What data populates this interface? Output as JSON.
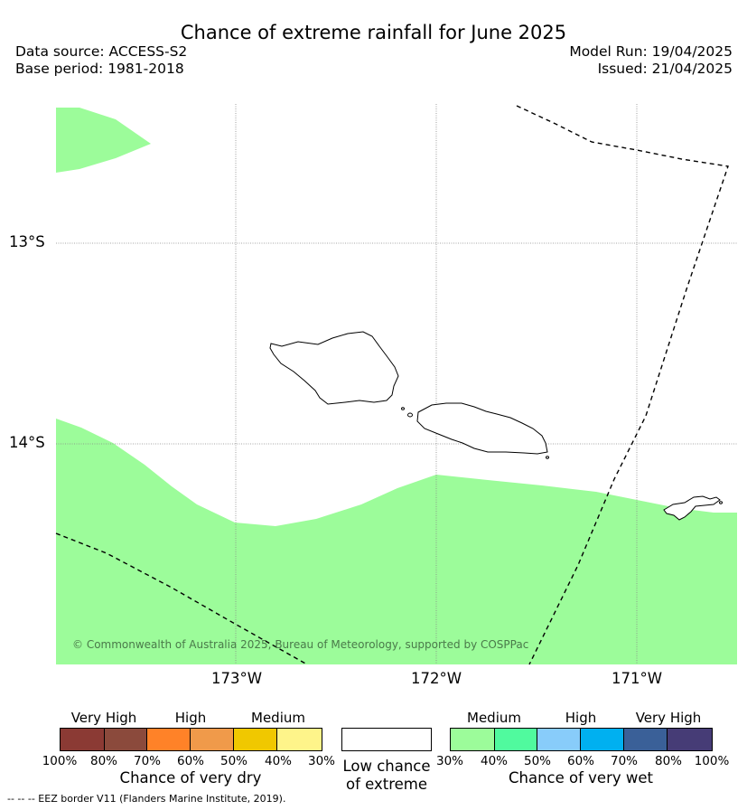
{
  "title": "Chance of extreme rainfall for June 2025",
  "header": {
    "data_source": "Data source: ACCESS-S2",
    "base_period": "Base period: 1981-2018",
    "model_run": "Model Run: 19/04/2025",
    "issued": "Issued: 21/04/2025"
  },
  "map": {
    "lat_labels": [
      "13°S",
      "14°S"
    ],
    "lon_labels": [
      "173°W",
      "172°W",
      "171°W"
    ],
    "copyright": "© Commonwealth of Australia 2025, Bureau of Meteorology, supported by COSPPac",
    "colors": {
      "wet_medium_30_40": "#9cfc9a",
      "land_outline": "#000000"
    }
  },
  "legend_dry": {
    "categories": [
      "Very High",
      "High",
      "Medium"
    ],
    "colors": [
      "#8b3a34",
      "#8b4a3c",
      "#ff8228",
      "#f09a4a",
      "#f0c800",
      "#fef48a"
    ],
    "ticks": [
      "100%",
      "80%",
      "70%",
      "60%",
      "50%",
      "40%",
      "30%"
    ],
    "title": "Chance of very dry"
  },
  "legend_low": {
    "title_line1": "Low chance",
    "title_line2": "of extreme",
    "color": "#ffffff"
  },
  "legend_wet": {
    "categories": [
      "Medium",
      "High",
      "Very High"
    ],
    "colors": [
      "#9cfc9a",
      "#50fa9e",
      "#88ccfa",
      "#00b0f0",
      "#3a6098",
      "#463c76"
    ],
    "ticks": [
      "30%",
      "40%",
      "50%",
      "60%",
      "70%",
      "80%",
      "100%"
    ],
    "title": "Chance of very wet"
  },
  "eez_note": "--  --  -- EEZ border V11 (Flanders Marine Institute, 2019)."
}
